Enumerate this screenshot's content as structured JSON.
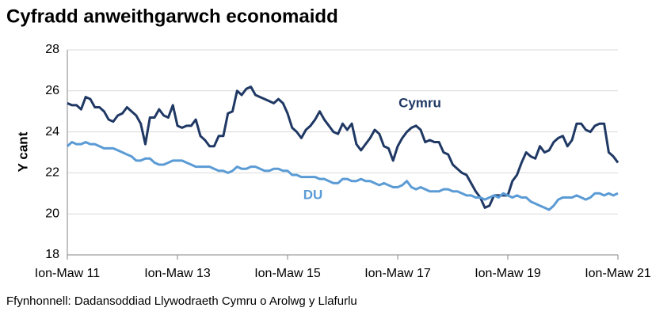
{
  "chart_data": {
    "type": "line",
    "title": "Cyfradd anweithgarwch economaidd",
    "y_label": "Y cant",
    "source": "Ffynhonnell: Dadansoddiad Llywodraeth Cymru o Arolwg y Llafurlu",
    "categories": [
      "Ion-Maw 11",
      null,
      null,
      null,
      null,
      null,
      null,
      null,
      null,
      null,
      null,
      null,
      null,
      null,
      null,
      null,
      null,
      null,
      null,
      null,
      null,
      null,
      null,
      null,
      "Ion-Maw 13",
      null,
      null,
      null,
      null,
      null,
      null,
      null,
      null,
      null,
      null,
      null,
      null,
      null,
      null,
      null,
      null,
      null,
      null,
      null,
      null,
      null,
      null,
      null,
      "Ion-Maw 15",
      null,
      null,
      null,
      null,
      null,
      null,
      null,
      null,
      null,
      null,
      null,
      null,
      null,
      null,
      null,
      null,
      null,
      null,
      null,
      null,
      null,
      null,
      null,
      "Ion-Maw 17",
      null,
      null,
      null,
      null,
      null,
      null,
      null,
      null,
      null,
      null,
      null,
      null,
      null,
      null,
      null,
      null,
      null,
      null,
      null,
      null,
      null,
      null,
      null,
      "Ion-Maw 19",
      null,
      null,
      null,
      null,
      null,
      null,
      null,
      null,
      null,
      null,
      null,
      null,
      null,
      null,
      null,
      null,
      null,
      null,
      null,
      null,
      null,
      null,
      null,
      "Ion-Maw 21"
    ],
    "series": [
      {
        "name": "Cymru",
        "color": "#1f3864",
        "values": [
          25.4,
          25.3,
          25.3,
          25.1,
          25.7,
          25.6,
          25.2,
          25.2,
          25.0,
          24.6,
          24.5,
          24.8,
          24.9,
          25.2,
          25.0,
          24.8,
          24.4,
          23.4,
          24.7,
          24.7,
          25.1,
          24.8,
          24.7,
          25.3,
          24.3,
          24.2,
          24.3,
          24.3,
          24.6,
          23.8,
          23.6,
          23.3,
          23.3,
          23.8,
          23.8,
          24.9,
          25.0,
          26.0,
          25.8,
          26.1,
          26.2,
          25.8,
          25.7,
          25.6,
          25.5,
          25.4,
          25.6,
          25.4,
          24.9,
          24.2,
          24.0,
          23.7,
          24.1,
          24.3,
          24.6,
          25.0,
          24.6,
          24.3,
          24.0,
          23.9,
          24.4,
          24.1,
          24.4,
          23.4,
          23.1,
          23.4,
          23.7,
          24.1,
          23.9,
          23.3,
          23.2,
          22.6,
          23.3,
          23.7,
          24.0,
          24.2,
          24.3,
          24.1,
          23.5,
          23.6,
          23.5,
          23.5,
          23.0,
          22.9,
          22.4,
          22.2,
          22.0,
          21.9,
          21.5,
          21.1,
          20.8,
          20.3,
          20.4,
          20.9,
          20.9,
          20.9,
          20.9,
          21.6,
          21.9,
          22.5,
          23.0,
          22.8,
          22.7,
          23.3,
          23.0,
          23.1,
          23.5,
          23.7,
          23.8,
          23.3,
          23.6,
          24.4,
          24.4,
          24.1,
          24.0,
          24.3,
          24.4,
          24.4,
          23.0,
          22.8,
          22.5
        ]
      },
      {
        "name": "DU",
        "color": "#5b9bd5",
        "values": [
          23.3,
          23.5,
          23.4,
          23.4,
          23.5,
          23.4,
          23.4,
          23.3,
          23.2,
          23.2,
          23.2,
          23.1,
          23.0,
          22.9,
          22.8,
          22.6,
          22.6,
          22.7,
          22.7,
          22.5,
          22.4,
          22.4,
          22.5,
          22.6,
          22.6,
          22.6,
          22.5,
          22.4,
          22.3,
          22.3,
          22.3,
          22.3,
          22.2,
          22.1,
          22.1,
          22.0,
          22.1,
          22.3,
          22.2,
          22.2,
          22.3,
          22.3,
          22.2,
          22.1,
          22.1,
          22.2,
          22.2,
          22.1,
          22.1,
          21.9,
          21.9,
          21.8,
          21.8,
          21.8,
          21.8,
          21.7,
          21.7,
          21.6,
          21.5,
          21.5,
          21.7,
          21.7,
          21.6,
          21.6,
          21.7,
          21.6,
          21.6,
          21.5,
          21.4,
          21.5,
          21.4,
          21.3,
          21.3,
          21.4,
          21.6,
          21.3,
          21.2,
          21.3,
          21.2,
          21.1,
          21.1,
          21.1,
          21.2,
          21.2,
          21.1,
          21.1,
          21.0,
          20.9,
          20.9,
          20.8,
          20.8,
          20.7,
          20.8,
          20.9,
          20.8,
          21.0,
          20.9,
          20.8,
          20.9,
          20.8,
          20.8,
          20.6,
          20.5,
          20.4,
          20.3,
          20.2,
          20.4,
          20.7,
          20.8,
          20.8,
          20.8,
          20.9,
          20.8,
          20.7,
          20.8,
          21.0,
          21.0,
          20.9,
          21.0,
          20.9,
          21.0
        ]
      }
    ],
    "ylim": [
      18,
      28
    ],
    "yticks": [
      18,
      20,
      22,
      24,
      26,
      28
    ],
    "grid": true
  }
}
